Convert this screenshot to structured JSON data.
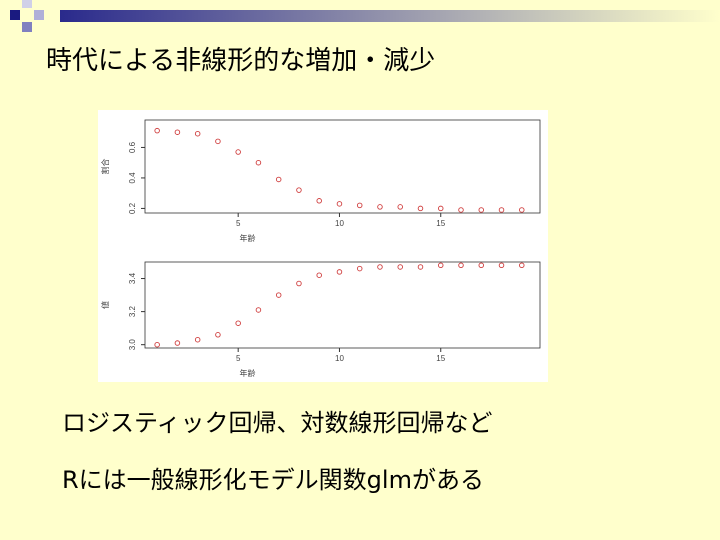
{
  "slide": {
    "title": "時代による非線形的な増加・減少",
    "bullets": [
      "ロジスティック回帰、対数線形回帰など",
      "Rには一般線形化モデル関数glmがある"
    ]
  },
  "chart_data": [
    {
      "type": "scatter",
      "x_label": "年齢",
      "y_label": "割合",
      "x": [
        1,
        2,
        3,
        4,
        5,
        6,
        7,
        8,
        9,
        10,
        11,
        12,
        13,
        14,
        15,
        16,
        17,
        18,
        19
      ],
      "values": [
        0.71,
        0.7,
        0.69,
        0.64,
        0.57,
        0.5,
        0.39,
        0.32,
        0.25,
        0.23,
        0.22,
        0.21,
        0.21,
        0.2,
        0.2,
        0.19,
        0.19,
        0.19,
        0.19
      ],
      "color": "#d04040",
      "xlim": [
        0.4,
        19.9
      ],
      "xticks": [
        5,
        10,
        15
      ],
      "ylim": [
        0.17,
        0.78
      ],
      "yticks": [
        0.2,
        0.4,
        0.6
      ]
    },
    {
      "type": "scatter",
      "x_label": "年齢",
      "y_label": "値",
      "x": [
        1,
        2,
        3,
        4,
        5,
        6,
        7,
        8,
        9,
        10,
        11,
        12,
        13,
        14,
        15,
        16,
        17,
        18,
        19
      ],
      "values": [
        3.0,
        3.01,
        3.03,
        3.06,
        3.13,
        3.21,
        3.3,
        3.37,
        3.42,
        3.44,
        3.46,
        3.47,
        3.47,
        3.47,
        3.48,
        3.48,
        3.48,
        3.48,
        3.48
      ],
      "color": "#d04040",
      "xlim": [
        0.4,
        19.9
      ],
      "xticks": [
        5,
        10,
        15
      ],
      "ylim": [
        2.98,
        3.5
      ],
      "yticks": [
        {
          "value": 3.0,
          "label": "3.0"
        },
        {
          "value": 3.2,
          "label": "3.2"
        },
        {
          "value": 3.4,
          "label": "3.4"
        }
      ]
    }
  ]
}
